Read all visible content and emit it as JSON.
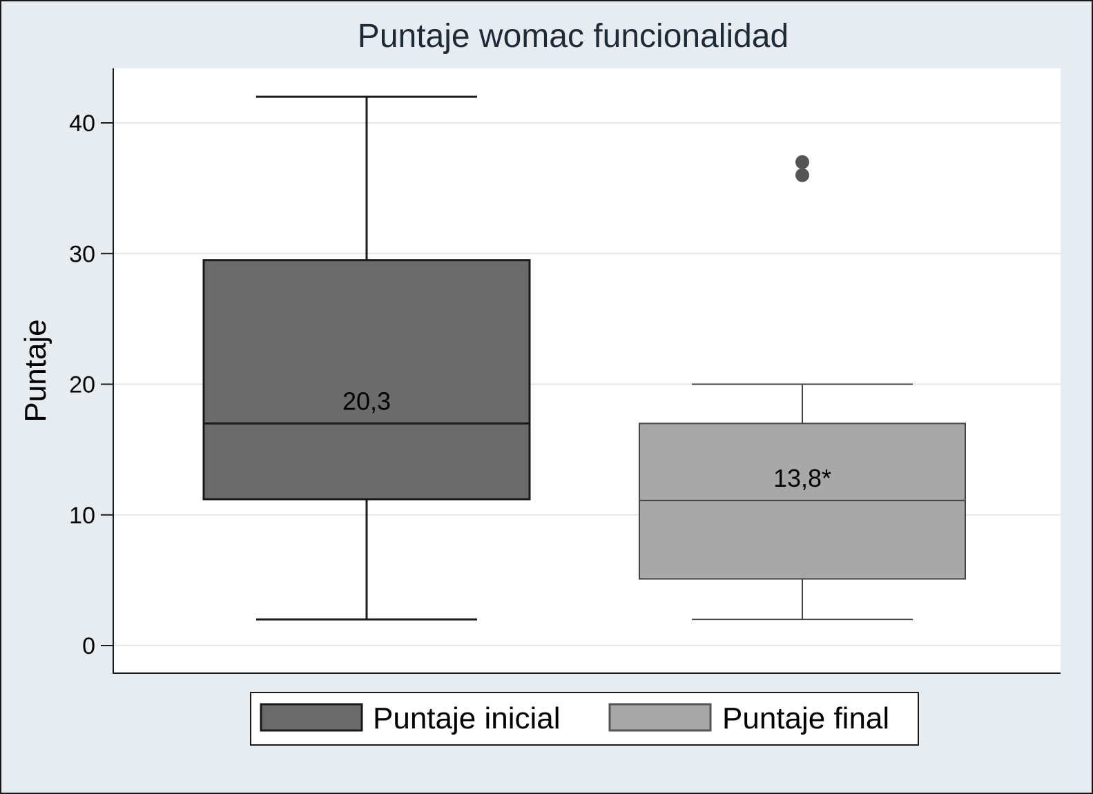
{
  "chart_data": {
    "type": "box",
    "title": "Puntaje womac funcionalidad",
    "ylabel": "Puntaje",
    "xlabel": "",
    "ylim": [
      -2,
      44
    ],
    "yticks": [
      0,
      10,
      20,
      30,
      40
    ],
    "grid": true,
    "legend_position": "bottom",
    "series": [
      {
        "name": "Puntaje inicial",
        "color": "#6b6b6b",
        "whisker_low": 2,
        "q1": 11.2,
        "median": 17,
        "q3": 29.5,
        "whisker_high": 42,
        "outliers": [],
        "annotation": "20,3"
      },
      {
        "name": "Puntaje final",
        "color": "#a8a8a8",
        "whisker_low": 2,
        "q1": 5.1,
        "median": 11.1,
        "q3": 17,
        "whisker_high": 20,
        "outliers": [
          36,
          37
        ],
        "annotation": "13,8*"
      }
    ]
  }
}
